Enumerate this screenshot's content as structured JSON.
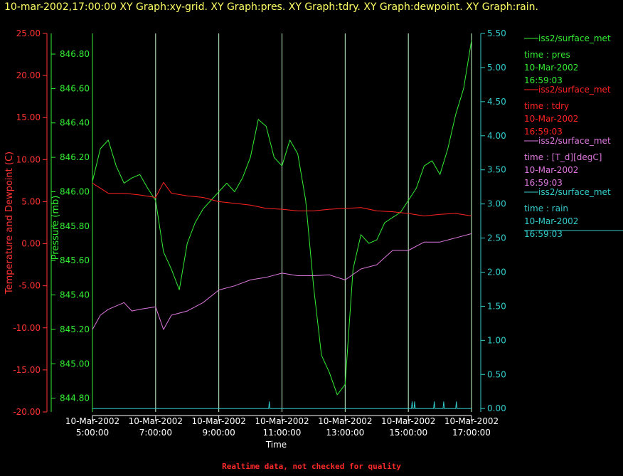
{
  "header": {
    "title": "10-mar-2002,17:00:00  XY Graph:xy-grid.  XY Graph:pres.  XY Graph:tdry.  XY Graph:dewpoint.  XY Graph:rain."
  },
  "footer": {
    "note": "Realtime data, not checked for quality"
  },
  "colors": {
    "pres": "#33ee33",
    "tdry": "#ff2222",
    "dewpoint": "#dd77dd",
    "rain": "#33cccc",
    "grid": "#ccffcc",
    "temp_axis": "#ff3333"
  },
  "chart_data": {
    "type": "line",
    "xlabel": "Time",
    "x_ticks": [
      {
        "date": "10-Mar-2002",
        "time": "5:00:00",
        "hour": 5
      },
      {
        "date": "10-Mar-2002",
        "time": "7:00:00",
        "hour": 7
      },
      {
        "date": "10-Mar-2002",
        "time": "9:00:00",
        "hour": 9
      },
      {
        "date": "10-Mar-2002",
        "time": "11:00:00",
        "hour": 11
      },
      {
        "date": "10-Mar-2002",
        "time": "13:00:00",
        "hour": 13
      },
      {
        "date": "10-Mar-2002",
        "time": "15:00:00",
        "hour": 15
      },
      {
        "date": "10-Mar-2002",
        "time": "17:00:00",
        "hour": 17
      }
    ],
    "xlim": [
      5,
      17
    ],
    "grid": true,
    "axes": {
      "temperature": {
        "label": "Temperature and Dewpoint (C)",
        "ylim": [
          -20,
          25
        ],
        "ticks": [
          "-20.00",
          "-15.00",
          "-10.00",
          "-5.00",
          "0.00",
          "5.00",
          "10.00",
          "15.00",
          "20.00",
          "25.00"
        ]
      },
      "pressure": {
        "label": "Pressure (mb)",
        "ylim": [
          844.72,
          846.92
        ],
        "ticks": [
          "844.80",
          "845.00",
          "845.20",
          "845.40",
          "845.60",
          "845.80",
          "846.00",
          "846.20",
          "846.40",
          "846.60",
          "846.80"
        ]
      },
      "rain": {
        "label": "",
        "ylim": [
          -0.05,
          5.5
        ],
        "ticks": [
          "0.00",
          "0.50",
          "1.00",
          "1.50",
          "2.00",
          "2.50",
          "3.00",
          "3.50",
          "4.00",
          "4.50",
          "5.00",
          "5.50"
        ]
      }
    },
    "legend": {
      "placement": "right",
      "entries": [
        {
          "key": "pres",
          "source": "iss2/surface_met",
          "field": "time : pres",
          "date": "10-Mar-2002",
          "time": "16:59:03"
        },
        {
          "key": "tdry",
          "source": "iss2/surface_met",
          "field": "time : tdry",
          "date": "10-Mar-2002",
          "time": "16:59:03"
        },
        {
          "key": "dewpoint",
          "source": "iss2/surface_met",
          "field": "time : [T_d][degC]",
          "date": "10-Mar-2002",
          "time": "16:59:03"
        },
        {
          "key": "rain",
          "source": "iss2/surface_met",
          "field": "time : rain",
          "date": "10-Mar-2002",
          "time": "16:59:03"
        }
      ]
    },
    "series": [
      {
        "key": "pres",
        "axis": "pressure",
        "x": [
          5.0,
          5.25,
          5.5,
          5.75,
          6.0,
          6.25,
          6.5,
          6.75,
          7.0,
          7.25,
          7.5,
          7.75,
          8.0,
          8.25,
          8.5,
          8.75,
          9.0,
          9.25,
          9.5,
          9.75,
          10.0,
          10.25,
          10.5,
          10.75,
          11.0,
          11.25,
          11.5,
          11.75,
          12.0,
          12.25,
          12.5,
          12.75,
          13.0,
          13.25,
          13.5,
          13.75,
          14.0,
          14.25,
          14.5,
          14.75,
          15.0,
          15.25,
          15.5,
          15.75,
          16.0,
          16.25,
          16.5,
          16.75,
          17.0
        ],
        "y": [
          846.06,
          846.25,
          846.3,
          846.15,
          846.05,
          846.08,
          846.1,
          846.02,
          845.95,
          845.65,
          845.55,
          845.43,
          845.7,
          845.82,
          845.9,
          845.95,
          846.0,
          846.05,
          846.0,
          846.08,
          846.2,
          846.42,
          846.38,
          846.2,
          846.15,
          846.3,
          846.22,
          845.95,
          845.45,
          845.05,
          844.95,
          844.82,
          844.88,
          845.55,
          845.75,
          845.7,
          845.72,
          845.82,
          845.85,
          845.88,
          845.95,
          846.02,
          846.15,
          846.18,
          846.1,
          846.25,
          846.45,
          846.6,
          846.88
        ]
      },
      {
        "key": "tdry",
        "axis": "temperature",
        "x": [
          5.0,
          5.5,
          6.0,
          6.5,
          7.0,
          7.25,
          7.5,
          8.0,
          8.5,
          9.0,
          9.5,
          10.0,
          10.5,
          11.0,
          11.5,
          12.0,
          12.5,
          13.0,
          13.5,
          14.0,
          14.5,
          15.0,
          15.5,
          16.0,
          16.5,
          17.0
        ],
        "y": [
          7.2,
          6.0,
          6.0,
          5.8,
          5.5,
          7.3,
          6.0,
          5.7,
          5.5,
          5.0,
          4.8,
          4.6,
          4.2,
          4.1,
          3.9,
          3.9,
          4.1,
          4.2,
          4.3,
          3.9,
          3.8,
          3.6,
          3.3,
          3.5,
          3.6,
          3.3
        ]
      },
      {
        "key": "dewpoint",
        "axis": "temperature",
        "x": [
          5.0,
          5.25,
          5.5,
          6.0,
          6.25,
          6.5,
          7.0,
          7.25,
          7.5,
          8.0,
          8.5,
          9.0,
          9.5,
          10.0,
          10.5,
          11.0,
          11.5,
          12.0,
          12.5,
          13.0,
          13.5,
          14.0,
          14.5,
          15.0,
          15.5,
          16.0,
          16.5,
          17.0
        ],
        "y": [
          -10.2,
          -8.5,
          -7.8,
          -7.0,
          -8.0,
          -7.8,
          -7.5,
          -10.2,
          -8.5,
          -8.0,
          -7.0,
          -5.5,
          -5.0,
          -4.3,
          -4.0,
          -3.5,
          -3.8,
          -3.8,
          -3.7,
          -4.3,
          -3.0,
          -2.5,
          -0.8,
          -0.8,
          0.2,
          0.2,
          0.7,
          1.2
        ]
      },
      {
        "key": "rain",
        "axis": "rain",
        "x": [
          5.0,
          10.58,
          10.6,
          10.62,
          15.1,
          15.12,
          15.14,
          15.18,
          15.2,
          15.22,
          15.8,
          15.82,
          15.84,
          16.1,
          16.12,
          16.14,
          16.5,
          16.52,
          16.54,
          17.0
        ],
        "y": [
          0.0,
          0.0,
          0.1,
          0.0,
          0.0,
          0.1,
          0.0,
          0.0,
          0.1,
          0.0,
          0.0,
          0.1,
          0.0,
          0.0,
          0.1,
          0.0,
          0.0,
          0.1,
          0.0,
          0.0
        ]
      }
    ]
  }
}
